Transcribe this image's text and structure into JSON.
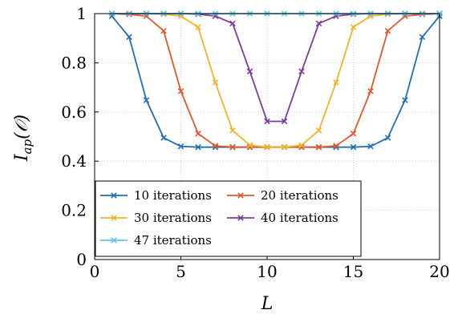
{
  "chart_data": {
    "type": "line",
    "title": "",
    "xlabel": "L",
    "ylabel": "I_ap(O)",
    "xlim": [
      0,
      20
    ],
    "ylim": [
      0,
      1
    ],
    "xticks": [
      0,
      5,
      10,
      15,
      20
    ],
    "yticks": [
      0,
      0.2,
      0.4,
      0.6,
      0.8,
      1
    ],
    "x_tick_labels": [
      "0",
      "5",
      "10",
      "15",
      "20"
    ],
    "y_tick_labels": [
      "0",
      "0.2",
      "0.4",
      "0.6",
      "0.8",
      "1"
    ],
    "grid": true,
    "legend_position": "bottom-left",
    "x": [
      1,
      2,
      3,
      4,
      5,
      6,
      7,
      8,
      9,
      10,
      11,
      12,
      13,
      14,
      15,
      16,
      17,
      18,
      19,
      20
    ],
    "series": [
      {
        "name": "10 iterations",
        "color": "#1f6fb5",
        "values": [
          0.99,
          0.905,
          0.648,
          0.495,
          0.46,
          0.457,
          0.457,
          0.457,
          0.457,
          0.457,
          0.457,
          0.457,
          0.457,
          0.457,
          0.457,
          0.46,
          0.495,
          0.648,
          0.905,
          0.99
        ]
      },
      {
        "name": "20 iterations",
        "color": "#e0582a",
        "values": [
          1.0,
          0.997,
          0.99,
          0.93,
          0.685,
          0.512,
          0.462,
          0.457,
          0.457,
          0.457,
          0.457,
          0.457,
          0.457,
          0.462,
          0.512,
          0.685,
          0.93,
          0.99,
          0.997,
          1.0
        ]
      },
      {
        "name": "30 iterations",
        "color": "#f0b429",
        "values": [
          1.0,
          1.0,
          1.0,
          0.998,
          0.99,
          0.945,
          0.72,
          0.525,
          0.465,
          0.457,
          0.457,
          0.465,
          0.525,
          0.72,
          0.945,
          0.99,
          0.998,
          1.0,
          1.0,
          1.0
        ]
      },
      {
        "name": "40 iterations",
        "color": "#7e3a9c",
        "values": [
          1.0,
          1.0,
          1.0,
          1.0,
          1.0,
          0.998,
          0.99,
          0.96,
          0.765,
          0.562,
          0.562,
          0.765,
          0.96,
          0.99,
          0.998,
          1.0,
          1.0,
          1.0,
          1.0,
          1.0
        ]
      },
      {
        "name": "47 iterations",
        "color": "#5fc3eb",
        "values": [
          1.0,
          1.0,
          1.0,
          1.0,
          1.0,
          1.0,
          1.0,
          1.0,
          1.0,
          1.0,
          1.0,
          1.0,
          1.0,
          1.0,
          1.0,
          1.0,
          1.0,
          1.0,
          1.0,
          1.0
        ]
      }
    ]
  }
}
